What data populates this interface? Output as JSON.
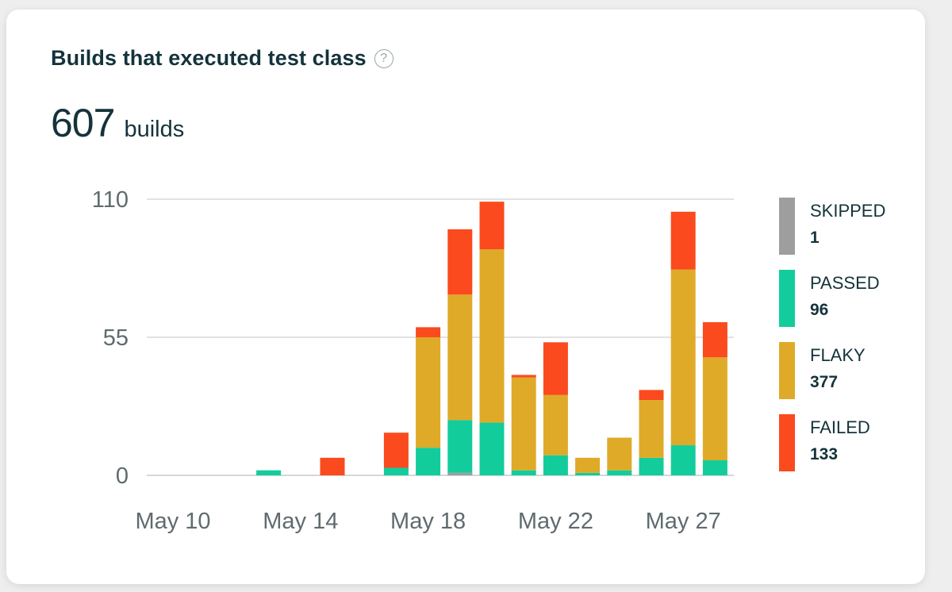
{
  "card": {
    "title": "Builds that executed test class",
    "help_icon": "question-circle-icon",
    "help_glyph": "?",
    "total_value": "607",
    "total_unit": "builds"
  },
  "chart_data": {
    "type": "bar",
    "stacked": true,
    "grid": true,
    "legend_position": "right",
    "ylim": [
      0,
      110
    ],
    "yticks": [
      0,
      55,
      110
    ],
    "x_tick_labels": [
      {
        "index": 0,
        "label": "May 10"
      },
      {
        "index": 4,
        "label": "May 14"
      },
      {
        "index": 8,
        "label": "May 18"
      },
      {
        "index": 12,
        "label": "May 22"
      },
      {
        "index": 16,
        "label": "May 27"
      }
    ],
    "categories": [
      "",
      "",
      "",
      "",
      "",
      "",
      "",
      "",
      "",
      "",
      "",
      "",
      "",
      "",
      "",
      "",
      "",
      ""
    ],
    "series": [
      {
        "name": "SKIPPED",
        "total": "1",
        "color": "#9e9e9e",
        "values": [
          0,
          0,
          0,
          0,
          0,
          0,
          0,
          0,
          0,
          1,
          0,
          0,
          0,
          0,
          0,
          0,
          0,
          0
        ]
      },
      {
        "name": "PASSED",
        "total": "96",
        "color": "#13cc9c",
        "values": [
          0,
          0,
          0,
          2,
          0,
          0,
          0,
          3,
          11,
          21,
          21,
          2,
          8,
          1,
          2,
          7,
          12,
          6
        ]
      },
      {
        "name": "FLAKY",
        "total": "377",
        "color": "#dfaa27",
        "values": [
          0,
          0,
          0,
          0,
          0,
          0,
          0,
          0,
          44,
          50,
          69,
          37,
          24,
          6,
          13,
          23,
          70,
          41
        ]
      },
      {
        "name": "FAILED",
        "total": "133",
        "color": "#fa4a1e",
        "values": [
          0,
          0,
          0,
          0,
          0,
          7,
          0,
          14,
          4,
          26,
          19,
          1,
          21,
          0,
          0,
          4,
          23,
          14
        ]
      }
    ]
  }
}
